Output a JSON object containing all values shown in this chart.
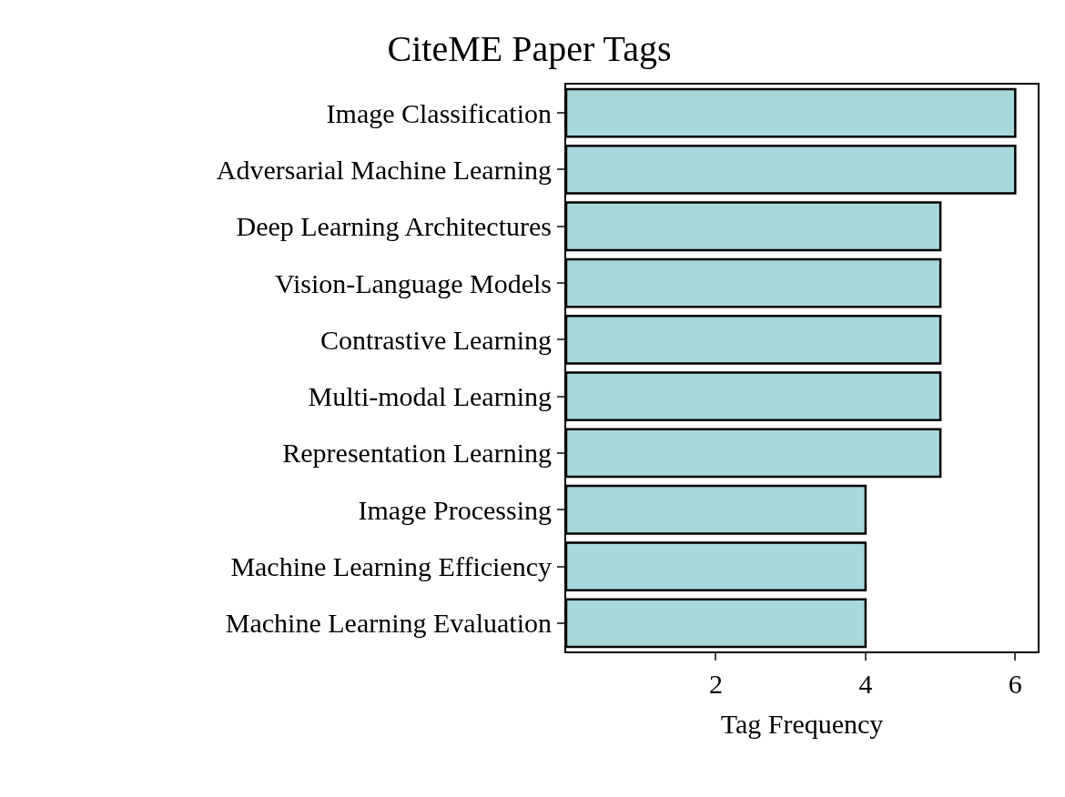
{
  "chart_data": {
    "type": "bar",
    "orientation": "horizontal",
    "title": "CiteME Paper Tags",
    "xlabel": "Tag Frequency",
    "categories": [
      "Image Classification",
      "Adversarial Machine Learning",
      "Deep Learning Architectures",
      "Vision-Language Models",
      "Contrastive Learning",
      "Multi-modal Learning",
      "Representation Learning",
      "Image Processing",
      "Machine Learning Efficiency",
      "Machine Learning Evaluation"
    ],
    "values": [
      6,
      6,
      5,
      5,
      5,
      5,
      5,
      4,
      4,
      4
    ],
    "color": "#a8d8dc",
    "xlim": [
      0,
      6.3
    ],
    "xticks": [
      2,
      4,
      6
    ]
  }
}
